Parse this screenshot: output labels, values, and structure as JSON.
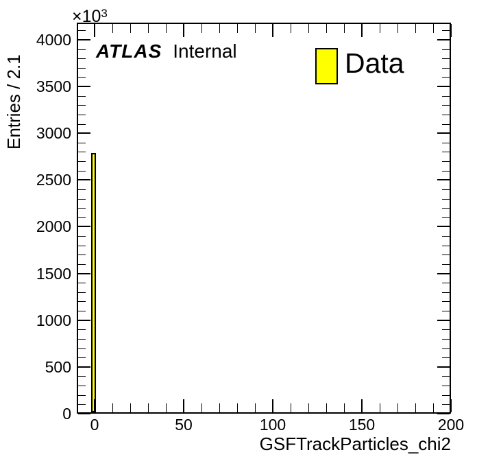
{
  "figure": {
    "background_color": "#ffffff",
    "axis_color": "#000000",
    "exponent_label": {
      "base": "×10",
      "power": "3"
    },
    "atlas_banner": {
      "experiment": "ATLAS",
      "status": "Internal"
    },
    "legend": {
      "position": "top-right",
      "entries": [
        {
          "label": "Data",
          "marker_color": "#ffff00",
          "marker_border_color": "#000000"
        }
      ]
    }
  },
  "chart_data": {
    "type": "bar",
    "style": "histogram",
    "title": "",
    "xlabel": "GSFTrackParticles_chi2",
    "ylabel": "Entries / 2.1",
    "y_scale_note": "y values are in units of 10^3 entries; axis exponent shows x10^3",
    "xlim": [
      -10,
      200
    ],
    "ylim": [
      0,
      4183
    ],
    "x_major_ticks": [
      0,
      50,
      100,
      150,
      200
    ],
    "x_minor_tick_step": 10,
    "y_major_ticks": [
      0,
      500,
      1000,
      1500,
      2000,
      2500,
      3000,
      3500,
      4000
    ],
    "y_minor_tick_step": 100,
    "bin_width": 2.1,
    "grid": false,
    "legend_position": "top-right",
    "series": [
      {
        "name": "Data",
        "fill_color": "#ffff00",
        "line_color": "#000000",
        "bins": [
          {
            "x_low": -1.6,
            "x_high": 0.5,
            "count": 2790
          }
        ]
      }
    ]
  }
}
